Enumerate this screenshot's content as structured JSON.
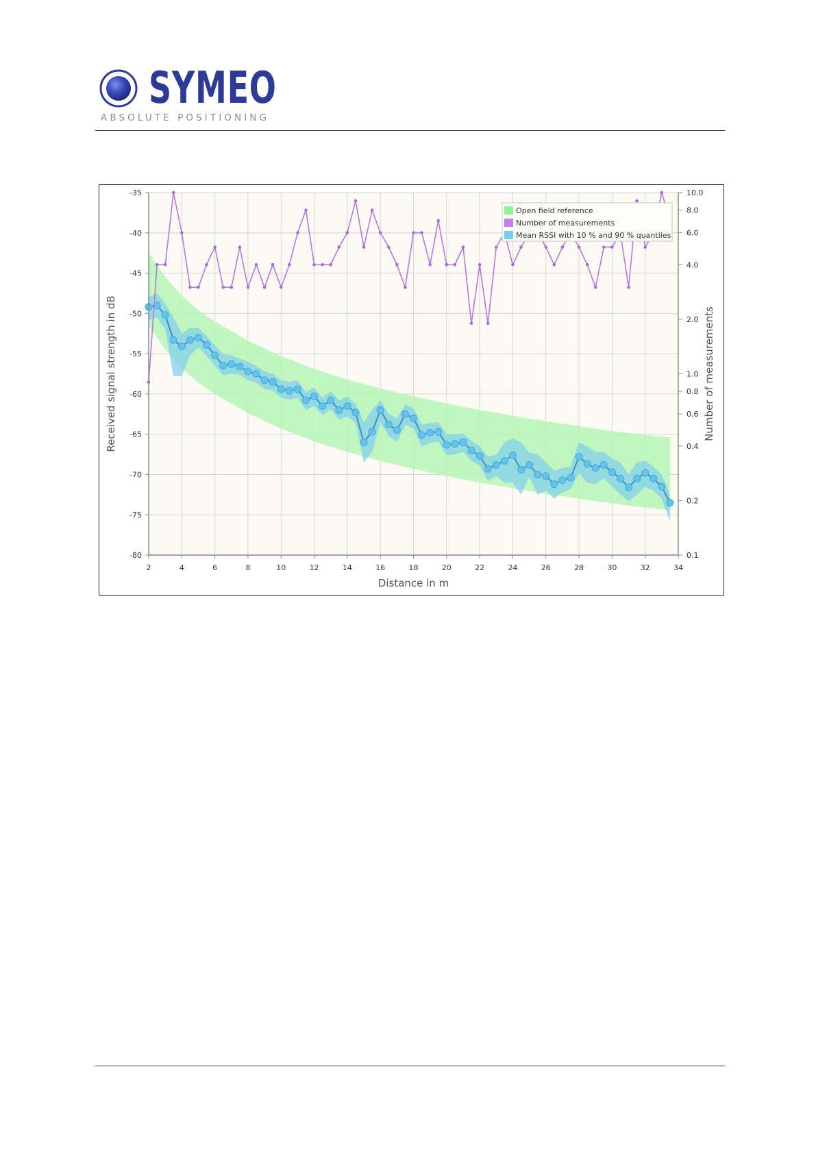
{
  "logo": {
    "name": "SYMEO",
    "tagline": "ABSOLUTE POSITIONING",
    "color": "#2d3a96"
  },
  "chart_data": {
    "type": "line",
    "title": "",
    "xlabel": "Distance in m",
    "ylabel": "Received signal strength in dB",
    "y2label": "Number of measurements",
    "xlim": [
      2,
      34
    ],
    "ylim": [
      -80,
      -35
    ],
    "y2lim": [
      0.1,
      10.0
    ],
    "y2scale": "log",
    "xticks": [
      2,
      4,
      6,
      8,
      10,
      12,
      14,
      16,
      18,
      20,
      22,
      24,
      26,
      28,
      30,
      32,
      34
    ],
    "yticks": [
      -35,
      -40,
      -45,
      -50,
      -55,
      -60,
      -65,
      -70,
      -75,
      -80
    ],
    "y2ticks": [
      "10.0",
      "8.0",
      "6.0",
      "4.0",
      "2.0",
      "1.0",
      "0.8",
      "0.6",
      "0.4",
      "0.2",
      "0.1"
    ],
    "grid": true,
    "legend_position": "top-right",
    "legend": [
      {
        "label": "Open field reference",
        "color": "#8ff58f"
      },
      {
        "label": "Number of measurements",
        "color": "#c77dee"
      },
      {
        "label": "Mean RSSI with 10 % and 90 % quantiles",
        "color": "#72cfee"
      }
    ],
    "series": [
      {
        "name": "Open field reference",
        "type": "band",
        "color": "#b6f5b6",
        "x": [
          2,
          3,
          4,
          5,
          6,
          8,
          10,
          12,
          14,
          16,
          18,
          20,
          22,
          24,
          26,
          28,
          30,
          32,
          33.5
        ],
        "upper": [
          -42.5,
          -45.5,
          -47.8,
          -49.6,
          -51.0,
          -53.4,
          -55.3,
          -56.9,
          -58.2,
          -59.3,
          -60.3,
          -61.2,
          -62.0,
          -62.7,
          -63.4,
          -64.0,
          -64.6,
          -65.1,
          -65.4
        ],
        "lower": [
          -51.5,
          -54.5,
          -56.8,
          -58.6,
          -60.0,
          -62.4,
          -64.3,
          -65.9,
          -67.2,
          -68.3,
          -69.3,
          -70.2,
          -71.0,
          -71.7,
          -72.4,
          -73.0,
          -73.6,
          -74.1,
          -74.4
        ]
      },
      {
        "name": "Mean RSSI with 10 % and 90 % quantiles",
        "type": "line-band",
        "color": "#4cb8e6",
        "x": [
          2.0,
          2.5,
          3.0,
          3.5,
          4.0,
          4.5,
          5.0,
          5.5,
          6.0,
          6.5,
          7.0,
          7.5,
          8.0,
          8.5,
          9.0,
          9.5,
          10.0,
          10.5,
          11.0,
          11.5,
          12.0,
          12.5,
          13.0,
          13.5,
          14.0,
          14.5,
          15.0,
          15.5,
          16.0,
          16.5,
          17.0,
          17.5,
          18.0,
          18.5,
          19.0,
          19.5,
          20.0,
          20.5,
          21.0,
          21.5,
          22.0,
          22.5,
          23.0,
          23.5,
          24.0,
          24.5,
          25.0,
          25.5,
          26.0,
          26.5,
          27.0,
          27.5,
          28.0,
          28.5,
          29.0,
          29.5,
          30.0,
          30.5,
          31.0,
          31.5,
          32.0,
          32.5,
          33.0,
          33.5
        ],
        "mean": [
          -49.2,
          -49.0,
          -50.2,
          -53.3,
          -54.1,
          -53.3,
          -53.0,
          -53.9,
          -55.2,
          -56.5,
          -56.3,
          -56.6,
          -57.2,
          -57.5,
          -58.3,
          -58.5,
          -59.4,
          -59.6,
          -59.4,
          -60.8,
          -60.3,
          -61.5,
          -60.8,
          -62.0,
          -61.5,
          -62.3,
          -66.0,
          -64.7,
          -62.0,
          -63.8,
          -64.5,
          -62.5,
          -63.0,
          -65.1,
          -64.8,
          -64.7,
          -66.3,
          -66.2,
          -66.0,
          -67.0,
          -67.7,
          -69.3,
          -68.8,
          -68.3,
          -67.6,
          -69.4,
          -68.8,
          -70.0,
          -70.2,
          -71.2,
          -70.7,
          -70.4,
          -67.8,
          -68.7,
          -69.2,
          -68.8,
          -69.7,
          -70.5,
          -71.6,
          -70.5,
          -69.8,
          -70.5,
          -71.5,
          -73.5
        ],
        "upper": [
          -48.0,
          -47.5,
          -48.8,
          -50.5,
          -52.5,
          -51.8,
          -51.8,
          -52.8,
          -54.0,
          -55.0,
          -55.2,
          -55.6,
          -56.0,
          -56.5,
          -57.2,
          -57.5,
          -58.3,
          -58.5,
          -58.3,
          -59.8,
          -59.2,
          -60.5,
          -59.7,
          -60.8,
          -60.3,
          -61.2,
          -63.5,
          -62.0,
          -60.8,
          -62.5,
          -63.0,
          -61.3,
          -61.8,
          -63.8,
          -63.6,
          -63.5,
          -65.0,
          -65.0,
          -64.9,
          -65.8,
          -66.5,
          -67.8,
          -67.5,
          -66.0,
          -65.5,
          -66.0,
          -67.3,
          -67.5,
          -68.5,
          -69.5,
          -69.2,
          -69.0,
          -66.0,
          -66.5,
          -67.2,
          -67.2,
          -68.0,
          -68.5,
          -70.0,
          -68.5,
          -68.3,
          -69.0,
          -70.0,
          -72.5
        ],
        "lower": [
          -50.8,
          -50.5,
          -52.0,
          -57.8,
          -57.8,
          -55.2,
          -54.2,
          -55.3,
          -56.5,
          -57.7,
          -57.5,
          -57.6,
          -58.3,
          -58.6,
          -59.4,
          -59.6,
          -60.5,
          -60.7,
          -60.5,
          -62.0,
          -61.5,
          -62.6,
          -61.9,
          -63.2,
          -62.8,
          -63.6,
          -68.5,
          -67.2,
          -63.5,
          -65.2,
          -66.0,
          -63.8,
          -64.3,
          -66.5,
          -66.1,
          -65.9,
          -67.6,
          -67.5,
          -67.2,
          -68.3,
          -68.9,
          -70.8,
          -70.2,
          -71.0,
          -71.0,
          -72.5,
          -70.3,
          -72.5,
          -72.0,
          -73.0,
          -72.2,
          -71.8,
          -69.8,
          -71.0,
          -71.2,
          -70.5,
          -71.5,
          -72.5,
          -73.3,
          -72.5,
          -71.5,
          -72.0,
          -73.0,
          -75.8
        ]
      },
      {
        "name": "Number of measurements",
        "type": "line",
        "axis": "y2",
        "color": "#bb77e0",
        "x": [
          2.0,
          2.5,
          3.0,
          3.5,
          4.0,
          4.5,
          5.0,
          5.5,
          6.0,
          6.5,
          7.0,
          7.5,
          8.0,
          8.5,
          9.0,
          9.5,
          10.0,
          10.5,
          11.0,
          11.5,
          12.0,
          12.5,
          13.0,
          13.5,
          14.0,
          14.5,
          15.0,
          15.5,
          16.0,
          16.5,
          17.0,
          17.5,
          18.0,
          18.5,
          19.0,
          19.5,
          20.0,
          20.5,
          21.0,
          21.5,
          22.0,
          22.5,
          23.0,
          23.5,
          24.0,
          24.5,
          25.0,
          25.5,
          26.0,
          26.5,
          27.0,
          27.5,
          28.0,
          28.5,
          29.0,
          29.5,
          30.0,
          30.5,
          31.0,
          31.5,
          32.0,
          32.5,
          33.0,
          33.5
        ],
        "values": [
          0.9,
          4.0,
          4.0,
          10.0,
          6.0,
          3.0,
          3.0,
          4.0,
          5.0,
          3.0,
          3.0,
          5.0,
          3.0,
          4.0,
          3.0,
          4.0,
          3.0,
          4.0,
          6.0,
          8.0,
          4.0,
          4.0,
          4.0,
          5.0,
          6.0,
          9.0,
          5.0,
          8.0,
          6.0,
          5.0,
          4.0,
          3.0,
          6.0,
          6.0,
          4.0,
          7.0,
          4.0,
          4.0,
          5.0,
          1.9,
          4.0,
          1.9,
          5.0,
          6.0,
          4.0,
          5.0,
          6.0,
          6.0,
          5.0,
          4.0,
          5.0,
          6.0,
          5.0,
          4.0,
          3.0,
          5.0,
          5.0,
          6.0,
          3.0,
          9.0,
          5.0,
          6.0,
          10.0,
          7.0
        ]
      }
    ]
  }
}
